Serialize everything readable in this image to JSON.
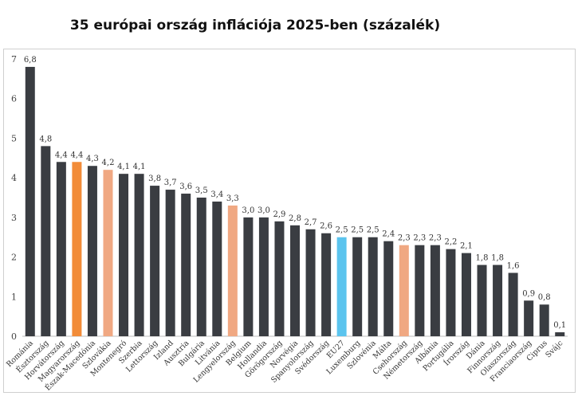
{
  "chart_data": {
    "type": "bar",
    "title": "35 európai ország inflációja 2025-ben (százalék)",
    "xlabel": "",
    "ylabel": "",
    "ylim": [
      0,
      7
    ],
    "yticks": [
      0,
      1,
      2,
      3,
      4,
      5,
      6,
      7
    ],
    "grid": false,
    "categories": [
      "Románia",
      "Észtország",
      "Horvátország",
      "Magyarország",
      "Észak-Macedónia",
      "Szlovákia",
      "Montenegró",
      "Szerbia",
      "Lettország",
      "Izland",
      "Ausztria",
      "Bulgária",
      "Litvánia",
      "Lengyelország",
      "Belgium",
      "Hollandia",
      "Görögország",
      "Norvégia",
      "Spanyolország",
      "Svédország",
      "EU27",
      "Luxemburg",
      "Szlovénia",
      "Málta",
      "Csehország",
      "Németország",
      "Albánia",
      "Portugália",
      "Írország",
      "Dánia",
      "Finnország",
      "Olaszország",
      "Franciaország",
      "Ciprus",
      "Svájc"
    ],
    "values": [
      6.8,
      4.8,
      4.4,
      4.4,
      4.3,
      4.2,
      4.1,
      4.1,
      3.8,
      3.7,
      3.6,
      3.5,
      3.4,
      3.3,
      3.0,
      3.0,
      2.9,
      2.8,
      2.7,
      2.6,
      2.5,
      2.5,
      2.5,
      2.4,
      2.3,
      2.3,
      2.3,
      2.2,
      2.1,
      1.8,
      1.8,
      1.6,
      0.9,
      0.8,
      0.1
    ],
    "value_labels": [
      "6,8",
      "4,8",
      "4,4",
      "4,4",
      "4,3",
      "4,2",
      "4,1",
      "4,1",
      "3,8",
      "3,7",
      "3,6",
      "3,5",
      "3,4",
      "3,3",
      "3,0",
      "3,0",
      "2,9",
      "2,8",
      "2,7",
      "2,6",
      "2,5",
      "2,5",
      "2,5",
      "2,4",
      "2,3",
      "2,3",
      "2,3",
      "2,2",
      "2,1",
      "1,8",
      "1,8",
      "1,6",
      "0,9",
      "0,8",
      "0,1"
    ],
    "highlight": {
      "Magyarország": "#f28c38",
      "Szlovákia": "#f0a882",
      "Lengyelország": "#f0a882",
      "Csehország": "#f0a882",
      "EU27": "#5bc4ee"
    },
    "colors": {
      "default": "#3a3d42",
      "axis": "#bdbdbd"
    }
  }
}
